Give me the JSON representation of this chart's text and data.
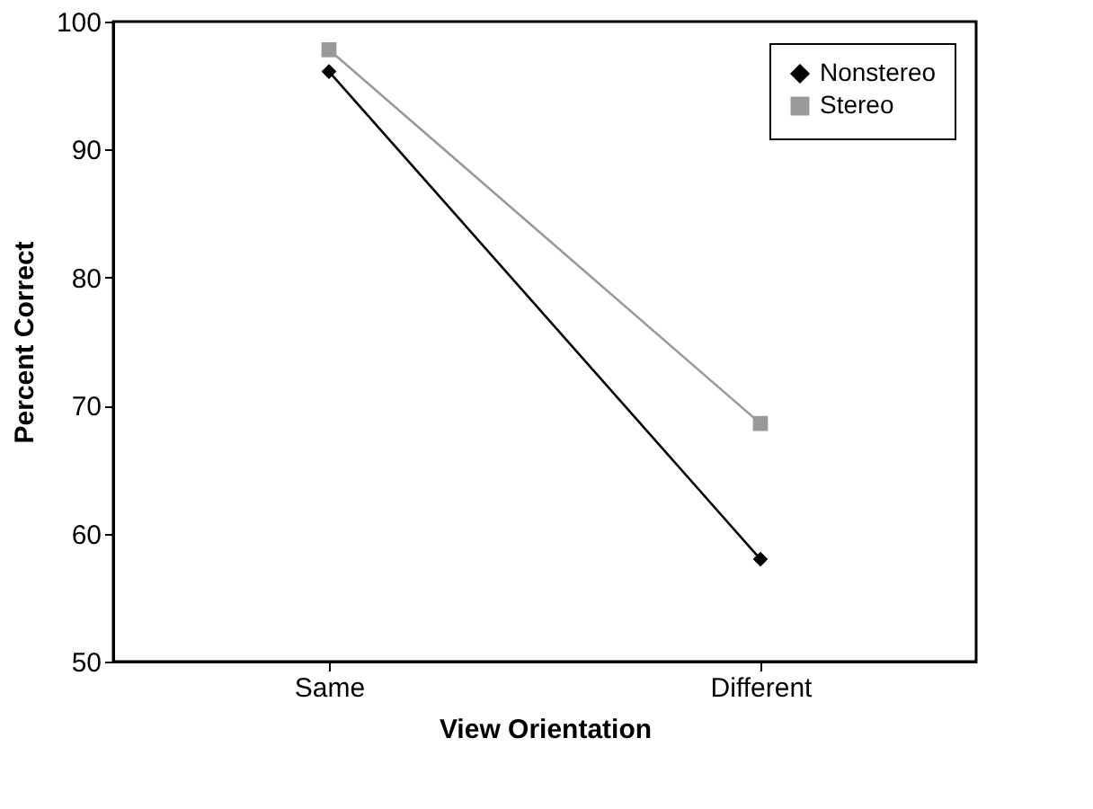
{
  "chart_data": {
    "type": "line",
    "xlabel": "View Orientation",
    "ylabel": "Percent Correct",
    "categories": [
      "Same",
      "Different"
    ],
    "series": [
      {
        "name": "Nonstereo",
        "color": "#000000",
        "marker": "diamond",
        "values": [
          96.1,
          58.0
        ]
      },
      {
        "name": "Stereo",
        "color": "#999999",
        "marker": "square",
        "values": [
          97.8,
          68.6
        ]
      }
    ],
    "ylim": [
      50,
      100
    ],
    "yticks": [
      50,
      60,
      70,
      80,
      90,
      100
    ],
    "grid": false,
    "legend": "top right",
    "line_style": "solid"
  }
}
